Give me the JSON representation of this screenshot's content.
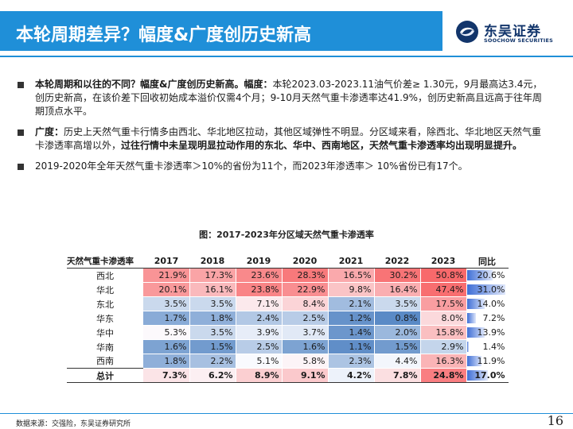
{
  "header": {
    "title": "本轮周期差异？幅度&广度创历史新高",
    "logo_cn": "东吴证券",
    "logo_en": "SOOCHOW SECURITIES"
  },
  "bullets": [
    {
      "lead": "本轮周期和以往的不同？幅度&广度创历史新高。幅度：",
      "text": "本轮2023.03-2023.11油气价差≥ 1.30元，9月最高达3.4元，创历史新高，在该价差下回收初始成本溢价仅需4个月；9-10月天然气重卡渗透率达41.9%，创历史新高且远高于往年周期顶点水平。"
    },
    {
      "lead": "广度：",
      "text": "历史上天然气重卡行情多由西北、华北地区拉动，其他区域弹性不明显。分区域来看，除西北、华北地区天然气重卡渗透率高增以外，",
      "bold_tail": "过往行情中未呈现明显拉动作用的东北、华中、西南地区，天然气重卡渗透率均出现明显提升。"
    },
    {
      "text": "2019-2020年全年天然气重卡渗透率＞10%的省份为11个，而2023年渗透率＞ 10%省份已有17个。"
    }
  ],
  "table": {
    "caption": "图：2017-2023年分区域天然气重卡渗透率",
    "row_header": "天然气重卡渗透率",
    "years": [
      "2017",
      "2018",
      "2019",
      "2020",
      "2021",
      "2022",
      "2023"
    ],
    "yoy_header": "同比",
    "rows": [
      {
        "region": "西北",
        "cells": [
          "21.9%",
          "17.3%",
          "23.6%",
          "28.3%",
          "16.5%",
          "30.2%",
          "50.8%"
        ],
        "yoy": "20.6%"
      },
      {
        "region": "华北",
        "cells": [
          "20.1%",
          "16.1%",
          "23.8%",
          "22.9%",
          "9.8%",
          "16.4%",
          "47.4%"
        ],
        "yoy": "31.0%"
      },
      {
        "region": "东北",
        "cells": [
          "3.5%",
          "3.5%",
          "7.1%",
          "8.4%",
          "2.1%",
          "3.5%",
          "17.5%"
        ],
        "yoy": "14.0%"
      },
      {
        "region": "华东",
        "cells": [
          "1.7%",
          "1.8%",
          "2.4%",
          "2.5%",
          "1.2%",
          "0.8%",
          "8.0%"
        ],
        "yoy": "7.2%"
      },
      {
        "region": "华中",
        "cells": [
          "5.3%",
          "3.5%",
          "3.9%",
          "3.7%",
          "1.4%",
          "2.0%",
          "15.8%"
        ],
        "yoy": "13.9%"
      },
      {
        "region": "华南",
        "cells": [
          "1.6%",
          "1.5%",
          "2.5%",
          "1.6%",
          "1.1%",
          "1.5%",
          "2.9%"
        ],
        "yoy": "1.4%"
      },
      {
        "region": "西南",
        "cells": [
          "1.8%",
          "2.2%",
          "5.1%",
          "5.8%",
          "2.3%",
          "4.4%",
          "16.3%"
        ],
        "yoy": "11.9%"
      }
    ],
    "total": {
      "region": "总计",
      "cells": [
        "7.3%",
        "6.2%",
        "8.9%",
        "9.1%",
        "4.2%",
        "7.8%",
        "24.8%"
      ],
      "yoy": "17.0%"
    }
  },
  "footer": {
    "source": "数据来源：交强险，东吴证券研究所",
    "page": "16"
  },
  "colors": {
    "accent": "#1f8fd8",
    "heat_high": "#f8696b",
    "heat_mid": "#fcfcff",
    "heat_low": "#5a8ac6",
    "yoy_bar": "#3f6fd6"
  }
}
